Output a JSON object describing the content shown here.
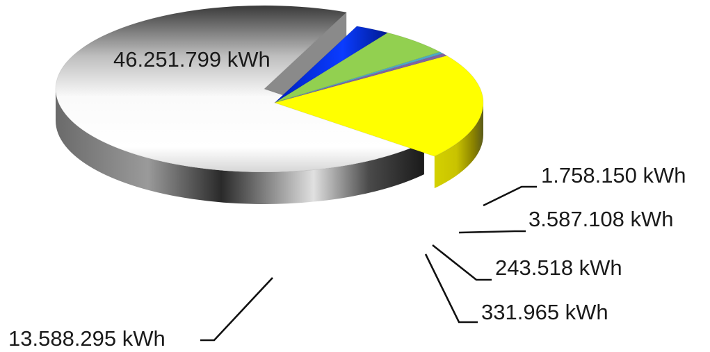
{
  "chart_data": {
    "type": "pie",
    "subtype": "3d-exploded",
    "unit": "kWh",
    "slices": [
      {
        "label": "46.251.799 kWh",
        "value": 46251799,
        "color": "#c8c8c8"
      },
      {
        "label": "1.758.150 kWh",
        "value": 1758150,
        "color": "#0a2ee0"
      },
      {
        "label": "3.587.108 kWh",
        "value": 3587108,
        "color": "#92d050"
      },
      {
        "label": "243.518 kWh",
        "value": 243518,
        "color": "#4bacc6"
      },
      {
        "label": "331.965 kWh",
        "value": 331965,
        "color": "#8064a2"
      },
      {
        "label": "13.588.295 kWh",
        "value": 13588295,
        "color": "#ffff00"
      }
    ]
  }
}
